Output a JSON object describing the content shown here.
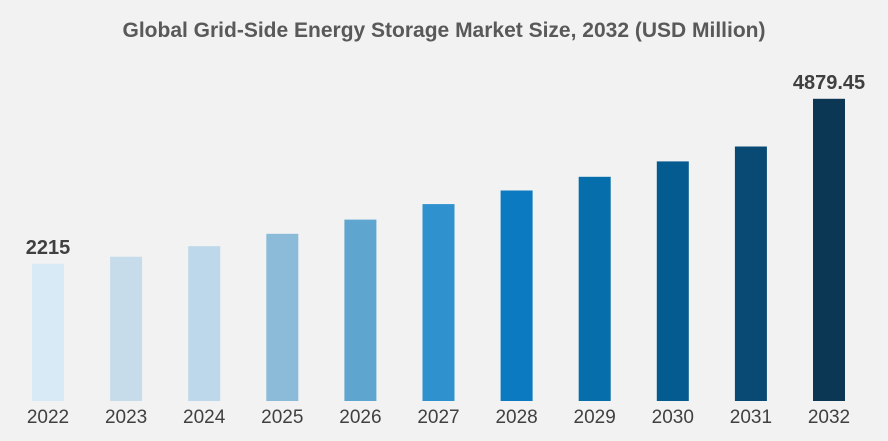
{
  "chart_data": {
    "type": "bar",
    "title": "Global Grid-Side Energy Storage Market Size, 2032 (USD Million)",
    "categories": [
      "2022",
      "2023",
      "2024",
      "2025",
      "2026",
      "2027",
      "2028",
      "2029",
      "2030",
      "2031",
      "2032"
    ],
    "values": [
      2215,
      2330,
      2500,
      2700,
      2930,
      3180,
      3400,
      3620,
      3870,
      4110,
      4879.45
    ],
    "data_labels": {
      "2022": "2215",
      "2032": "4879.45"
    },
    "bar_colors": [
      "#d9eaf7",
      "#c7dcea",
      "#bcd8ea",
      "#8bbbd8",
      "#5ea6d0",
      "#2f92cf",
      "#0b7ac0",
      "#066eaa",
      "#045b90",
      "#084a74",
      "#0b3755"
    ],
    "ylim": [
      0,
      5200
    ],
    "xlabel": "",
    "ylabel": "",
    "grid": false,
    "legend": "none"
  }
}
